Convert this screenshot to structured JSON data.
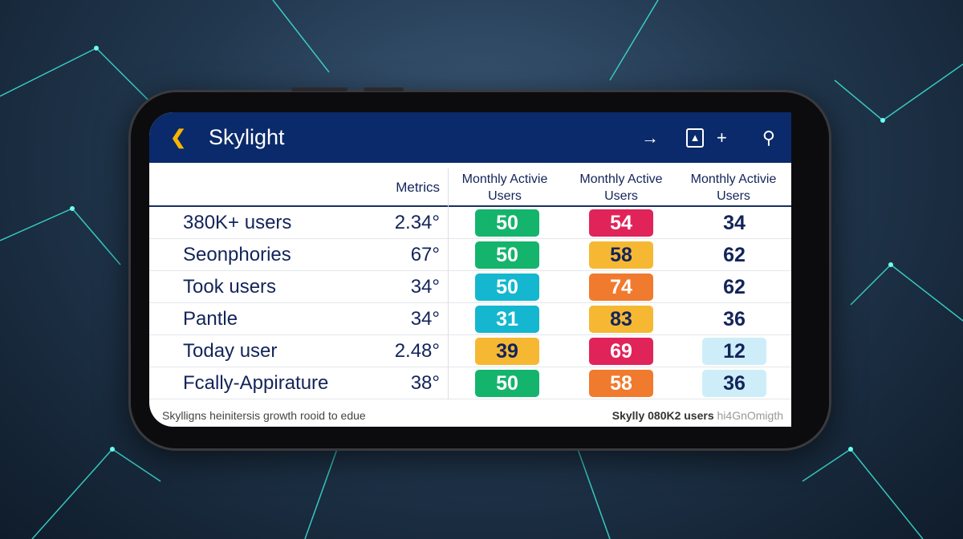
{
  "app": {
    "title": "Skylight"
  },
  "header_icons": [
    "back-chevron-icon",
    "arrow-right-icon",
    "image-icon",
    "plus-icon",
    "search-icon"
  ],
  "table": {
    "headers": [
      "Metrics",
      "Monthly Activie Users",
      "Monthly Active Users",
      "Monthly Activie Users"
    ],
    "rows": [
      {
        "label": "380K+ users",
        "metric": "2.34°",
        "c1": "50",
        "c2": "54",
        "c3": "34"
      },
      {
        "label": "Seonphories",
        "metric": "67°",
        "c1": "50",
        "c2": "58",
        "c3": "62"
      },
      {
        "label": "Took users",
        "metric": "34°",
        "c1": "50",
        "c2": "74",
        "c3": "62"
      },
      {
        "label": "Pantle",
        "metric": "34°",
        "c1": "31",
        "c2": "83",
        "c3": "36"
      },
      {
        "label": "Today user",
        "metric": "2.48°",
        "c1": "39",
        "c2": "69",
        "c3": "12"
      },
      {
        "label": "Fcally-Appirature",
        "metric": "38°",
        "c1": "50",
        "c2": "58",
        "c3": "36"
      }
    ]
  },
  "colors": {
    "header": "#0b2a6b",
    "green": "#14b46c",
    "red": "#e0245a",
    "yellow": "#f6b833",
    "cyan": "#14b7cf",
    "orange": "#f07a2e",
    "light": "#cdeef8"
  },
  "footer": {
    "left": "Skylligns heinitersis growth rooid to edue",
    "right": "Skylly 080K2 users",
    "right_faded": "hi4GnOmigth"
  }
}
